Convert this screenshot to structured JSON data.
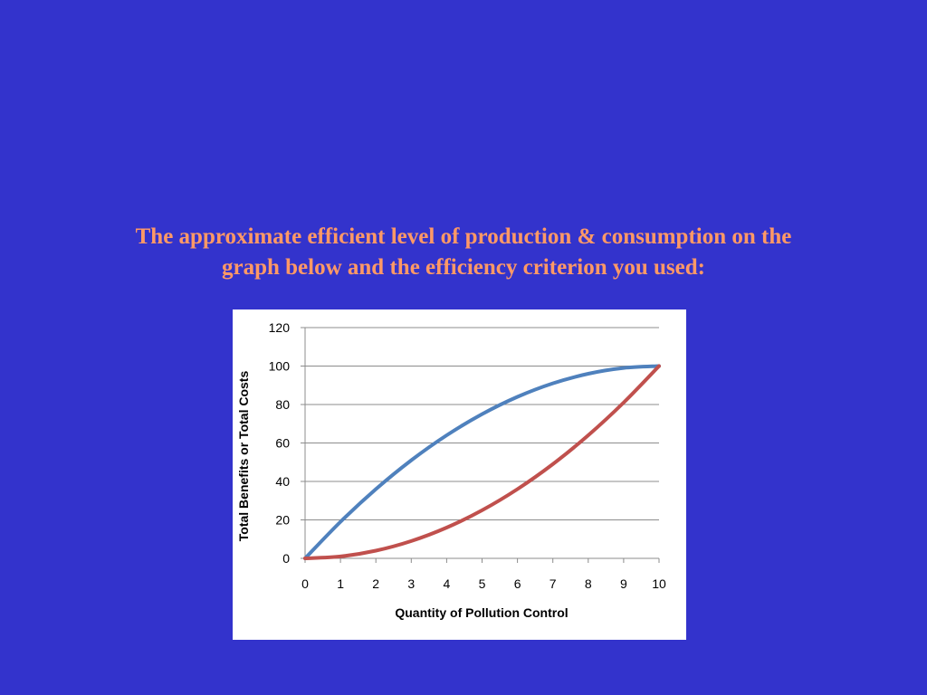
{
  "title": {
    "line1": "The approximate efficient level of production & consumption on the",
    "line2": "graph below and the efficiency criterion you used:"
  },
  "colors": {
    "background": "#3333cc",
    "title": "#ff9966",
    "series_benefits": "#4f81bd",
    "series_costs": "#c0504d"
  },
  "chart_data": {
    "type": "line",
    "xlabel": "Quantity of Pollution Control",
    "ylabel": "Total Benefits or Total Costs",
    "xlim": [
      0,
      10
    ],
    "ylim": [
      0,
      120
    ],
    "x_ticks": [
      0,
      1,
      2,
      3,
      4,
      5,
      6,
      7,
      8,
      9,
      10
    ],
    "y_ticks": [
      0,
      20,
      40,
      60,
      80,
      100,
      120
    ],
    "grid": "horizontal",
    "legend": "none",
    "x": [
      0,
      1,
      2,
      3,
      4,
      5,
      6,
      7,
      8,
      9,
      10
    ],
    "series": [
      {
        "values": [
          0,
          19,
          36,
          51,
          64,
          75,
          84,
          91,
          96,
          99,
          100
        ]
      },
      {
        "values": [
          0,
          1,
          4,
          9,
          16,
          25,
          36,
          49,
          64,
          81,
          100
        ]
      }
    ]
  }
}
